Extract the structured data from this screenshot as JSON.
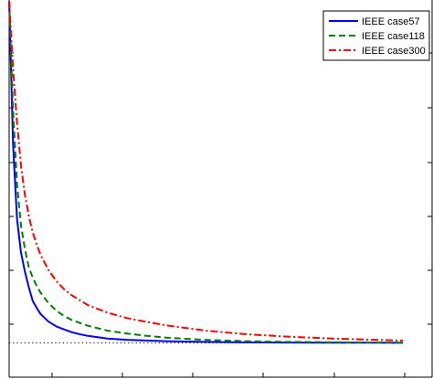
{
  "chart_data": {
    "type": "line",
    "title": "",
    "xlabel": "",
    "ylabel": "",
    "legend_position": "top-right",
    "grid": false,
    "xlim": [
      0,
      100
    ],
    "ylim": [
      -0.05,
      0.5
    ],
    "reference_line": {
      "y": 0,
      "style": "dotted",
      "color": "#000000"
    },
    "series": [
      {
        "name": "IEEE case57",
        "color": "#0000ff",
        "dash": "solid",
        "x": [
          0,
          1,
          2,
          3,
          4,
          5,
          6,
          7,
          8,
          10,
          12,
          14,
          16,
          18,
          20,
          25,
          30,
          35,
          40,
          50,
          60,
          70,
          80,
          90,
          100
        ],
        "y": [
          0.4985,
          0.289,
          0.181,
          0.132,
          0.104,
          0.081,
          0.061,
          0.051,
          0.042,
          0.031,
          0.024,
          0.0195,
          0.0154,
          0.0125,
          0.0102,
          0.0063,
          0.0044,
          0.0034,
          0.0025,
          0.0014,
          0.0008,
          0.0005,
          0.0003,
          0.0002,
          0.0001
        ]
      },
      {
        "name": "IEEE case118",
        "color": "#008000",
        "dash": "dashed",
        "x": [
          0,
          1,
          2,
          3,
          4,
          5,
          6,
          7,
          8,
          10,
          12,
          14,
          16,
          18,
          20,
          25,
          30,
          35,
          40,
          50,
          60,
          70,
          80,
          90,
          100
        ],
        "y": [
          0.4985,
          0.339,
          0.231,
          0.172,
          0.137,
          0.11,
          0.095,
          0.083,
          0.073,
          0.058,
          0.047,
          0.039,
          0.033,
          0.029,
          0.025,
          0.0178,
          0.0136,
          0.0102,
          0.0076,
          0.0044,
          0.0025,
          0.0015,
          0.001,
          0.0007,
          0.0005
        ]
      },
      {
        "name": "IEEE case300",
        "color": "#ff0000",
        "dash": "dashdot",
        "x": [
          0,
          1,
          2,
          3,
          4,
          5,
          6,
          7,
          8,
          10,
          12,
          14,
          16,
          18,
          20,
          25,
          30,
          35,
          40,
          50,
          60,
          70,
          80,
          90,
          100
        ],
        "y": [
          0.4985,
          0.399,
          0.321,
          0.259,
          0.216,
          0.185,
          0.161,
          0.143,
          0.128,
          0.106,
          0.09,
          0.078,
          0.069,
          0.062,
          0.055,
          0.044,
          0.036,
          0.0305,
          0.0254,
          0.0178,
          0.0127,
          0.0093,
          0.0068,
          0.0049,
          0.0034
        ]
      }
    ]
  }
}
